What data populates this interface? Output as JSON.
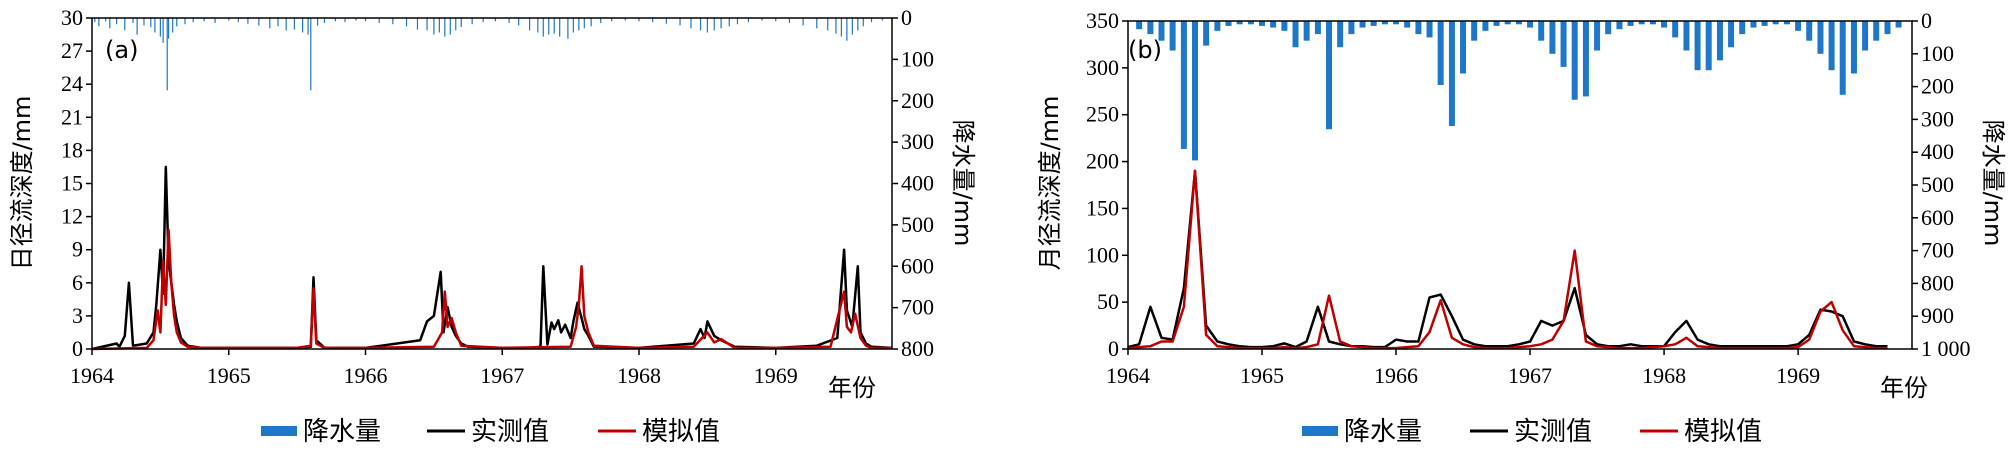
{
  "chart_data": [
    {
      "type": "line",
      "panel_label": "(a)",
      "ylabel": "日径流深度/mm",
      "y2label": "降水量/mm",
      "xunit_label": "年份",
      "x_ticks": [
        "1964",
        "1965",
        "1966",
        "1967",
        "1968",
        "1969"
      ],
      "ylim": [
        0,
        30
      ],
      "y_ticks": [
        "0",
        "3",
        "6",
        "9",
        "12",
        "15",
        "18",
        "21",
        "24",
        "27",
        "30"
      ],
      "y2lim": [
        0,
        800
      ],
      "y2_inverted": true,
      "y2_ticks": [
        "0",
        "100",
        "200",
        "300",
        "400",
        "500",
        "600",
        "700",
        "800"
      ],
      "xlim": [
        1964.0,
        1969.85
      ],
      "legend": [
        "降水量",
        "实测值",
        "模拟值"
      ],
      "colors": {
        "rain": "#1f77c9",
        "observed": "#000000",
        "simulated": "#c00000"
      },
      "series": [
        {
          "name": "实测值",
          "x": [
            1964.0,
            1964.18,
            1964.2,
            1964.24,
            1964.27,
            1964.3,
            1964.4,
            1964.45,
            1964.47,
            1964.5,
            1964.52,
            1964.54,
            1964.56,
            1964.58,
            1964.6,
            1964.62,
            1964.65,
            1964.7,
            1964.8,
            1965.3,
            1965.5,
            1965.6,
            1965.62,
            1965.64,
            1965.7,
            1966.0,
            1966.4,
            1966.45,
            1966.5,
            1966.55,
            1966.57,
            1966.6,
            1966.63,
            1966.66,
            1966.7,
            1966.75,
            1967.0,
            1967.2,
            1967.28,
            1967.3,
            1967.33,
            1967.36,
            1967.38,
            1967.41,
            1967.43,
            1967.46,
            1967.5,
            1967.52,
            1967.55,
            1967.58,
            1967.6,
            1967.63,
            1967.67,
            1968.0,
            1968.4,
            1968.45,
            1968.48,
            1968.5,
            1968.55,
            1968.6,
            1968.7,
            1969.0,
            1969.3,
            1969.45,
            1969.5,
            1969.52,
            1969.56,
            1969.6,
            1969.62,
            1969.66,
            1969.7,
            1969.85
          ],
          "values": [
            0,
            0.5,
            0.2,
            1.2,
            6,
            0.3,
            0.5,
            1.5,
            4,
            9,
            5,
            16.5,
            8,
            6,
            4,
            2.5,
            1,
            0.3,
            0.1,
            0.1,
            0.1,
            0.2,
            6.5,
            0.8,
            0.1,
            0.1,
            0.8,
            2.5,
            3,
            7,
            1.5,
            3.8,
            2,
            1.2,
            0.5,
            0.2,
            0.1,
            0.1,
            0.2,
            7.5,
            0.4,
            2.4,
            1.8,
            2.6,
            1.5,
            2.2,
            1,
            2.5,
            4.2,
            2.8,
            1.8,
            1.2,
            0.2,
            0.1,
            0.5,
            1.8,
            1,
            2.5,
            1.2,
            0.8,
            0.2,
            0.1,
            0.3,
            1,
            9,
            3.5,
            2,
            7.5,
            1.5,
            0.5,
            0.2,
            0.1
          ]
        },
        {
          "name": "模拟值",
          "x": [
            1964.0,
            1964.4,
            1964.45,
            1964.48,
            1964.5,
            1964.52,
            1964.54,
            1964.56,
            1964.58,
            1964.6,
            1964.62,
            1964.65,
            1964.7,
            1964.8,
            1965.5,
            1965.6,
            1965.62,
            1965.64,
            1965.7,
            1966.0,
            1966.5,
            1966.56,
            1966.58,
            1966.6,
            1966.63,
            1966.66,
            1966.7,
            1967.0,
            1967.5,
            1967.54,
            1967.56,
            1967.58,
            1967.6,
            1967.63,
            1967.67,
            1968.0,
            1968.4,
            1968.5,
            1968.55,
            1968.6,
            1968.7,
            1969.0,
            1969.4,
            1969.5,
            1969.52,
            1969.55,
            1969.58,
            1969.62,
            1969.66,
            1969.7,
            1969.85
          ],
          "values": [
            0,
            0.1,
            0.8,
            3.5,
            1.5,
            8,
            4,
            10.8,
            6,
            3,
            1.5,
            0.6,
            0.2,
            0.1,
            0.1,
            0.3,
            5.5,
            0.5,
            0.1,
            0.1,
            0.2,
            1.5,
            5.2,
            2,
            2.8,
            1.5,
            0.3,
            0.1,
            0.2,
            2,
            4,
            7.5,
            3,
            1.5,
            0.3,
            0.1,
            0.2,
            1.5,
            0.6,
            0.9,
            0.1,
            0.1,
            0.2,
            5.2,
            2,
            1.5,
            3.2,
            1,
            0.3,
            0.1,
            0.1
          ]
        }
      ],
      "rain": {
        "x": [
          1964.02,
          1964.05,
          1964.1,
          1964.13,
          1964.18,
          1964.24,
          1964.3,
          1964.33,
          1964.38,
          1964.43,
          1964.46,
          1964.5,
          1964.52,
          1964.55,
          1964.56,
          1964.59,
          1964.62,
          1964.68,
          1964.74,
          1964.82,
          1964.9,
          1965.0,
          1965.07,
          1965.14,
          1965.22,
          1965.3,
          1965.36,
          1965.42,
          1965.48,
          1965.54,
          1965.58,
          1965.6,
          1965.65,
          1965.7,
          1965.78,
          1965.85,
          1965.93,
          1966.0,
          1966.1,
          1966.2,
          1966.3,
          1966.38,
          1966.45,
          1966.5,
          1966.54,
          1966.58,
          1966.62,
          1966.66,
          1966.7,
          1966.78,
          1966.86,
          1966.95,
          1967.05,
          1967.12,
          1967.2,
          1967.26,
          1967.3,
          1967.34,
          1967.38,
          1967.42,
          1967.48,
          1967.52,
          1967.56,
          1967.6,
          1967.65,
          1967.72,
          1967.8,
          1967.9,
          1968.0,
          1968.1,
          1968.2,
          1968.3,
          1968.38,
          1968.45,
          1968.5,
          1968.55,
          1968.6,
          1968.66,
          1968.72,
          1968.8,
          1968.9,
          1969.0,
          1969.1,
          1969.2,
          1969.3,
          1969.38,
          1969.44,
          1969.48,
          1969.52,
          1969.56,
          1969.6,
          1969.64,
          1969.7,
          1969.78
        ],
        "values": [
          10,
          20,
          8,
          25,
          15,
          30,
          12,
          40,
          18,
          22,
          35,
          45,
          60,
          175,
          50,
          35,
          20,
          15,
          10,
          8,
          12,
          6,
          10,
          14,
          18,
          25,
          20,
          30,
          28,
          35,
          40,
          175,
          18,
          12,
          8,
          10,
          6,
          8,
          12,
          15,
          20,
          28,
          30,
          40,
          35,
          45,
          40,
          30,
          22,
          15,
          10,
          8,
          12,
          18,
          30,
          35,
          45,
          40,
          38,
          45,
          50,
          35,
          30,
          25,
          20,
          12,
          8,
          6,
          8,
          10,
          14,
          18,
          25,
          30,
          35,
          30,
          25,
          20,
          15,
          10,
          6,
          8,
          12,
          18,
          25,
          30,
          38,
          45,
          55,
          40,
          30,
          20,
          10,
          6
        ]
      }
    },
    {
      "type": "line",
      "panel_label": "(b)",
      "ylabel": "月径流深度/mm",
      "y2label": "降水量/mm",
      "xunit_label": "年份",
      "x_ticks": [
        "1964",
        "1965",
        "1966",
        "1967",
        "1968",
        "1969"
      ],
      "ylim": [
        0,
        350
      ],
      "y_ticks": [
        "0",
        "50",
        "100",
        "150",
        "200",
        "250",
        "300",
        "350"
      ],
      "y2lim": [
        0,
        1000
      ],
      "y2_inverted": true,
      "y2_ticks": [
        "0",
        "100",
        "200",
        "300",
        "400",
        "500",
        "600",
        "700",
        "800",
        "900",
        "1 000"
      ],
      "xlim": [
        1964.0,
        1969.85
      ],
      "legend": [
        "降水量",
        "实测值",
        "模拟值"
      ],
      "colors": {
        "rain": "#1f77c9",
        "observed": "#000000",
        "simulated": "#c00000"
      },
      "series": [
        {
          "name": "实测值",
          "x": [
            1964.0,
            1964.083,
            1964.167,
            1964.25,
            1964.333,
            1964.417,
            1964.5,
            1964.583,
            1964.667,
            1964.75,
            1964.833,
            1964.917,
            1965.0,
            1965.083,
            1965.167,
            1965.25,
            1965.333,
            1965.417,
            1965.5,
            1965.583,
            1965.667,
            1965.75,
            1965.833,
            1965.917,
            1966.0,
            1966.083,
            1966.167,
            1966.25,
            1966.333,
            1966.417,
            1966.5,
            1966.583,
            1966.667,
            1966.75,
            1966.833,
            1966.917,
            1967.0,
            1967.083,
            1967.167,
            1967.25,
            1967.333,
            1967.417,
            1967.5,
            1967.583,
            1967.667,
            1967.75,
            1967.833,
            1967.917,
            1968.0,
            1968.083,
            1968.167,
            1968.25,
            1968.333,
            1968.417,
            1968.5,
            1968.583,
            1968.667,
            1968.75,
            1968.833,
            1968.917,
            1969.0,
            1969.083,
            1969.167,
            1969.25,
            1969.333,
            1969.417,
            1969.5,
            1969.583,
            1969.667
          ],
          "values": [
            2,
            5,
            45,
            12,
            10,
            65,
            190,
            25,
            8,
            5,
            3,
            2,
            2,
            3,
            6,
            2,
            8,
            45,
            8,
            5,
            3,
            3,
            2,
            2,
            10,
            8,
            8,
            55,
            58,
            35,
            10,
            5,
            3,
            3,
            3,
            5,
            8,
            30,
            25,
            30,
            65,
            15,
            5,
            3,
            3,
            5,
            3,
            3,
            3,
            18,
            30,
            10,
            5,
            3,
            3,
            3,
            3,
            3,
            3,
            3,
            5,
            15,
            42,
            40,
            35,
            8,
            5,
            3,
            3
          ]
        },
        {
          "name": "模拟值",
          "x": [
            1964.0,
            1964.083,
            1964.167,
            1964.25,
            1964.333,
            1964.417,
            1964.5,
            1964.583,
            1964.667,
            1964.75,
            1964.833,
            1964.917,
            1965.0,
            1965.083,
            1965.167,
            1965.25,
            1965.333,
            1965.417,
            1965.5,
            1965.583,
            1965.667,
            1965.75,
            1965.833,
            1965.917,
            1966.0,
            1966.083,
            1966.167,
            1966.25,
            1966.333,
            1966.417,
            1966.5,
            1966.583,
            1966.667,
            1966.75,
            1966.833,
            1966.917,
            1967.0,
            1967.083,
            1967.167,
            1967.25,
            1967.333,
            1967.417,
            1967.5,
            1967.583,
            1967.667,
            1967.75,
            1967.833,
            1967.917,
            1968.0,
            1968.083,
            1968.167,
            1968.25,
            1968.333,
            1968.417,
            1968.5,
            1968.583,
            1968.667,
            1968.75,
            1968.833,
            1968.917,
            1969.0,
            1969.083,
            1969.167,
            1969.25,
            1969.333,
            1969.417,
            1969.5,
            1969.583,
            1969.667
          ],
          "values": [
            1,
            2,
            3,
            8,
            8,
            45,
            190,
            15,
            3,
            2,
            1,
            1,
            1,
            1,
            2,
            1,
            2,
            5,
            57,
            8,
            3,
            2,
            1,
            1,
            1,
            2,
            3,
            18,
            52,
            12,
            5,
            2,
            1,
            1,
            1,
            2,
            3,
            5,
            10,
            30,
            105,
            8,
            3,
            2,
            1,
            1,
            1,
            2,
            3,
            5,
            12,
            3,
            2,
            1,
            1,
            1,
            1,
            1,
            1,
            1,
            2,
            10,
            40,
            50,
            20,
            3,
            2,
            1,
            1
          ]
        }
      ],
      "rain": {
        "x": [
          1964.083,
          1964.167,
          1964.25,
          1964.333,
          1964.417,
          1964.5,
          1964.583,
          1964.667,
          1964.75,
          1964.833,
          1964.917,
          1965.0,
          1965.083,
          1965.167,
          1965.25,
          1965.333,
          1965.417,
          1965.5,
          1965.583,
          1965.667,
          1965.75,
          1965.833,
          1965.917,
          1966.0,
          1966.083,
          1966.167,
          1966.25,
          1966.333,
          1966.417,
          1966.5,
          1966.583,
          1966.667,
          1966.75,
          1966.833,
          1966.917,
          1967.0,
          1967.083,
          1967.167,
          1967.25,
          1967.333,
          1967.417,
          1967.5,
          1967.583,
          1967.667,
          1967.75,
          1967.833,
          1967.917,
          1968.0,
          1968.083,
          1968.167,
          1968.25,
          1968.333,
          1968.417,
          1968.5,
          1968.583,
          1968.667,
          1968.75,
          1968.833,
          1968.917,
          1969.0,
          1969.083,
          1969.167,
          1969.25,
          1969.333,
          1969.417,
          1969.5,
          1969.583,
          1969.667,
          1969.75
        ],
        "values": [
          25,
          40,
          60,
          90,
          390,
          425,
          75,
          30,
          15,
          10,
          10,
          15,
          20,
          30,
          80,
          60,
          40,
          330,
          80,
          40,
          20,
          15,
          10,
          10,
          20,
          40,
          50,
          195,
          320,
          160,
          60,
          30,
          15,
          10,
          10,
          20,
          60,
          100,
          140,
          240,
          230,
          90,
          40,
          25,
          15,
          10,
          10,
          20,
          50,
          90,
          150,
          150,
          120,
          80,
          40,
          20,
          15,
          10,
          10,
          30,
          60,
          100,
          150,
          225,
          160,
          90,
          60,
          40,
          20
        ]
      }
    }
  ]
}
